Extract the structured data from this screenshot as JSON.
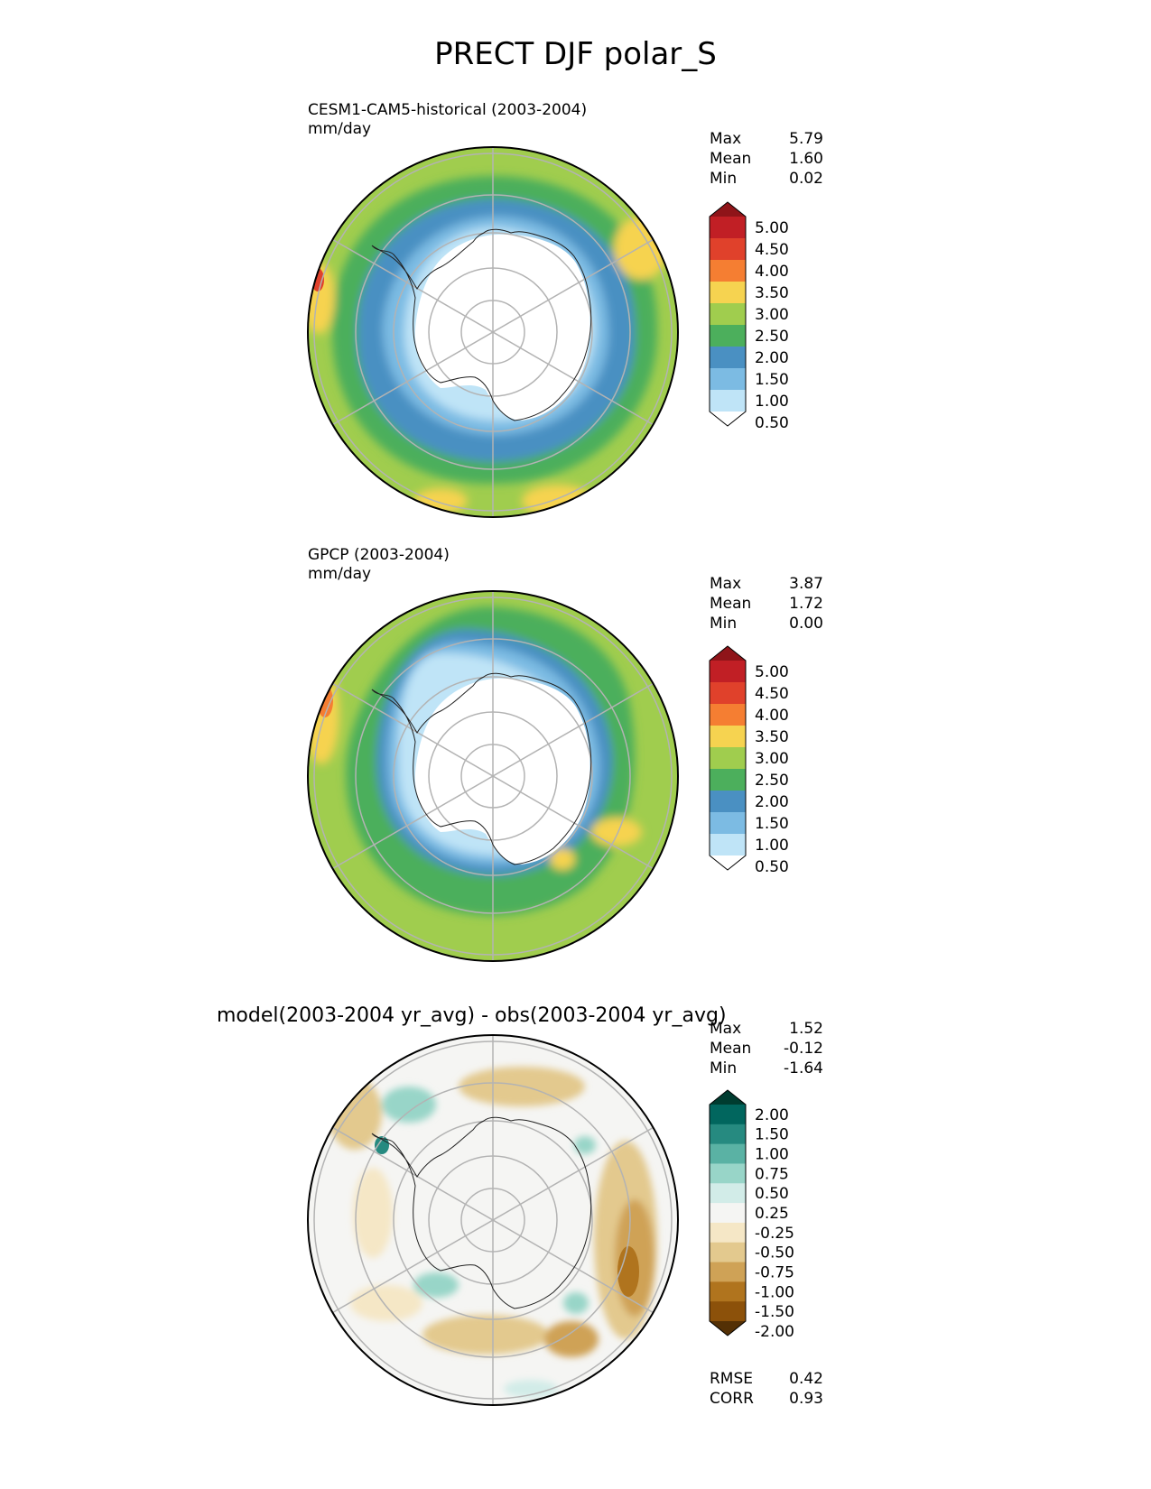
{
  "figure": {
    "title": "PRECT DJF polar_S"
  },
  "chart_data": [
    {
      "type": "heatmap",
      "projection": "south-polar-stereographic",
      "title_line1": "CESM1-CAM5-historical (2003-2004)",
      "units": "mm/day",
      "stats": {
        "max_label": "Max",
        "max": "5.79",
        "mean_label": "Mean",
        "mean": "1.60",
        "min_label": "Min",
        "min": "0.02"
      },
      "colorbar": {
        "levels": [
          "0.50",
          "1.00",
          "1.50",
          "2.00",
          "2.50",
          "3.00",
          "3.50",
          "4.00",
          "4.50",
          "5.00"
        ],
        "colors": [
          "#ffffff",
          "#bfe4f7",
          "#7cbbe3",
          "#4a90c2",
          "#4caf5c",
          "#a0cd4e",
          "#f6d350",
          "#f57e32",
          "#e0412b",
          "#c11f25",
          "#8f1419"
        ],
        "extend": "both"
      }
    },
    {
      "type": "heatmap",
      "projection": "south-polar-stereographic",
      "title_line1": "GPCP (2003-2004)",
      "units": "mm/day",
      "stats": {
        "max_label": "Max",
        "max": "3.87",
        "mean_label": "Mean",
        "mean": "1.72",
        "min_label": "Min",
        "min": "0.00"
      },
      "colorbar": {
        "levels": [
          "0.50",
          "1.00",
          "1.50",
          "2.00",
          "2.50",
          "3.00",
          "3.50",
          "4.00",
          "4.50",
          "5.00"
        ],
        "colors": [
          "#ffffff",
          "#bfe4f7",
          "#7cbbe3",
          "#4a90c2",
          "#4caf5c",
          "#a0cd4e",
          "#f6d350",
          "#f57e32",
          "#e0412b",
          "#c11f25",
          "#8f1419"
        ],
        "extend": "both"
      }
    },
    {
      "type": "heatmap",
      "projection": "south-polar-stereographic",
      "title_line1": "model(2003-2004 yr_avg) - obs(2003-2004 yr_avg)",
      "stats": {
        "max_label": "Max",
        "max": "1.52",
        "mean_label": "Mean",
        "mean": "-0.12",
        "min_label": "Min",
        "min": "-1.64"
      },
      "metrics": {
        "rmse_label": "RMSE",
        "rmse": "0.42",
        "corr_label": "CORR",
        "corr": "0.93"
      },
      "colorbar": {
        "levels": [
          "-2.00",
          "-1.50",
          "-1.00",
          "-0.75",
          "-0.50",
          "-0.25",
          "0.25",
          "0.50",
          "0.75",
          "1.00",
          "1.50",
          "2.00"
        ],
        "colors": [
          "#543005",
          "#8c510a",
          "#b0741e",
          "#cfa256",
          "#e3c98e",
          "#f5e7c6",
          "#f5f5f3",
          "#d2ece8",
          "#98d5c8",
          "#5ab2a4",
          "#268a80",
          "#01665e",
          "#003c30"
        ],
        "extend": "both"
      }
    }
  ]
}
